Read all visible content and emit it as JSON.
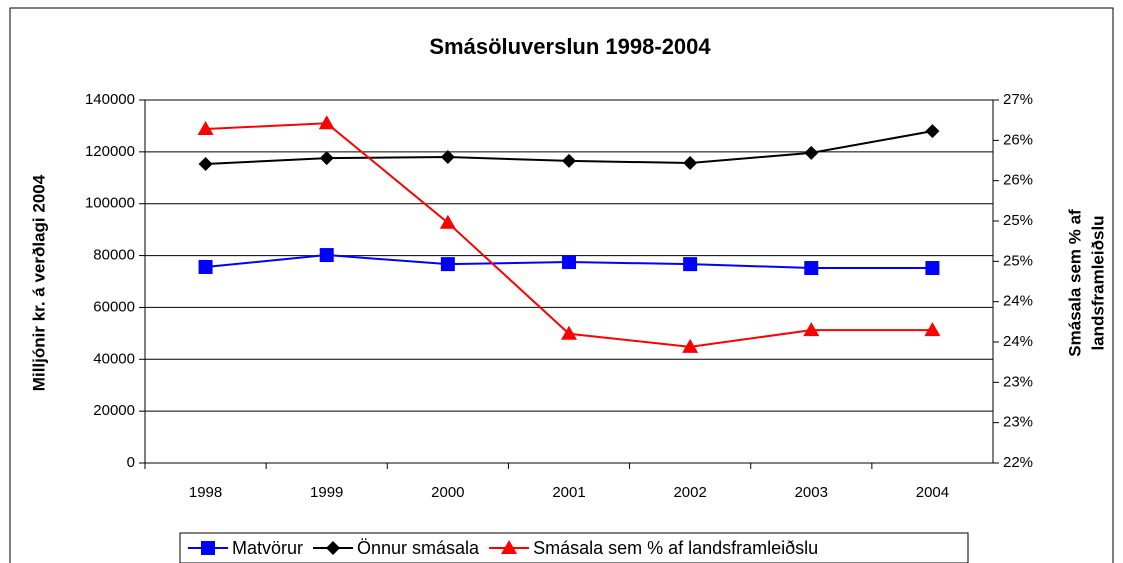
{
  "chart_data": {
    "type": "line",
    "title": "Smásöluverslun 1998-2004",
    "ylabel": "Milljónir kr. á verðlagi 2004",
    "y2label": [
      "Smásala sem % af",
      "landsframleiðslu"
    ],
    "categories": [
      "1998",
      "1999",
      "2000",
      "2001",
      "2002",
      "2003",
      "2004"
    ],
    "series": [
      {
        "name": "Matvörur",
        "color": "#0000ff",
        "marker": "square",
        "values": [
          75600,
          80200,
          76700,
          77500,
          76700,
          75200,
          75200
        ]
      },
      {
        "name": "Önnur smásala",
        "color": "#000000",
        "marker": "diamond",
        "values": [
          115300,
          117600,
          118000,
          116500,
          115700,
          119600,
          128000
        ]
      },
      {
        "name": "Smásala sem % af landsframleiðslu",
        "color": "#ff0000",
        "marker": "triangle",
        "axis": "y2",
        "values": [
          26.6,
          26.68,
          25.31,
          23.78,
          23.6,
          23.83,
          23.83
        ]
      }
    ],
    "ylim": [
      0,
      140000
    ],
    "yticks": [
      0,
      20000,
      40000,
      60000,
      80000,
      100000,
      120000,
      140000
    ],
    "y2lim": [
      22,
      27
    ],
    "y2ticks": [
      {
        "value": 22,
        "label": "22%"
      },
      {
        "value": 22.556,
        "label": "23%"
      },
      {
        "value": 23.111,
        "label": "23%"
      },
      {
        "value": 23.667,
        "label": "24%"
      },
      {
        "value": 24.222,
        "label": "24%"
      },
      {
        "value": 24.778,
        "label": "25%"
      },
      {
        "value": 25.333,
        "label": "25%"
      },
      {
        "value": 25.889,
        "label": "26%"
      },
      {
        "value": 26.444,
        "label": "26%"
      },
      {
        "value": 27,
        "label": "27%"
      }
    ],
    "grid": true,
    "legend": "bottom"
  }
}
